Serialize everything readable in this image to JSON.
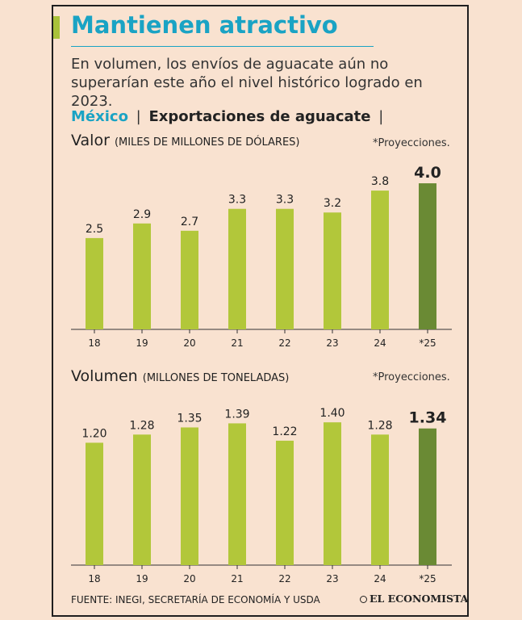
{
  "header": {
    "title": "Mantienen atractivo",
    "subtitle": "En volumen, los envíos de aguacate aún no superarían este año el nivel histórico logrado en 2023.",
    "country": "México",
    "topic": "Exportaciones de aguacate",
    "separator": "|"
  },
  "colors": {
    "bar": "#b2c73a",
    "bar_projection": "#6a8a34",
    "title": "#1aa3c4",
    "background": "#f9e2d0"
  },
  "charts": [
    {
      "heading": "Valor",
      "unit": "(MILES DE MILLONES DE DÓLARES)",
      "note": "*Proyecciones."
    },
    {
      "heading": "Volumen",
      "unit": "(MILLONES DE TONELADAS)",
      "note": "*Proyecciones."
    }
  ],
  "chart_data": [
    {
      "type": "bar",
      "title": "Valor (MILES DE MILLONES DE DÓLARES)",
      "categories": [
        "18",
        "19",
        "20",
        "21",
        "22",
        "23",
        "24",
        "*25"
      ],
      "values": [
        2.5,
        2.9,
        2.7,
        3.3,
        3.3,
        3.2,
        3.8,
        4.0
      ],
      "labels": [
        "2.5",
        "2.9",
        "2.7",
        "3.3",
        "3.3",
        "3.2",
        "3.8",
        "4.0"
      ],
      "projection_index": 7,
      "ylim": [
        0,
        4.2
      ]
    },
    {
      "type": "bar",
      "title": "Volumen (MILLONES DE TONELADAS)",
      "categories": [
        "18",
        "19",
        "20",
        "21",
        "22",
        "23",
        "24",
        "*25"
      ],
      "values": [
        1.2,
        1.28,
        1.35,
        1.39,
        1.22,
        1.4,
        1.28,
        1.34
      ],
      "labels": [
        "1.20",
        "1.28",
        "1.35",
        "1.39",
        "1.22",
        "1.40",
        "1.28",
        "1.34"
      ],
      "projection_index": 7,
      "ylim": [
        0,
        1.52
      ]
    }
  ],
  "footer": {
    "source": "FUENTE: INEGI, SECRETARÍA DE ECONOMÍA Y USDA",
    "brand": "EL ECONOMISTA"
  }
}
